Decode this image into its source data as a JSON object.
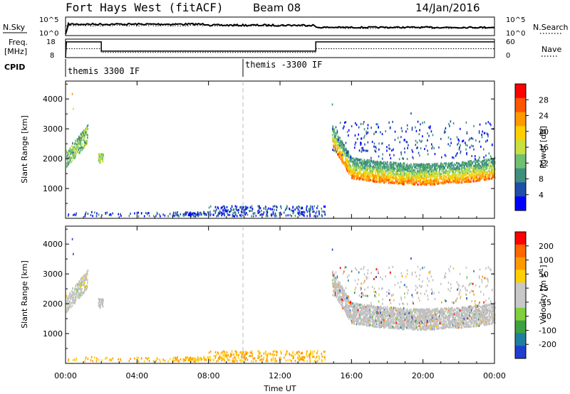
{
  "header": {
    "title": "Fort Hays West (fitACF)",
    "beam": "Beam 08",
    "date": "14/Jan/2016"
  },
  "nsky_panel": {
    "left_label": "N.Sky",
    "right_label": "N.Search",
    "left_ticks": [
      "10^5",
      "10^0"
    ],
    "right_ticks": [
      "10^5",
      "10^0"
    ]
  },
  "freq_panel": {
    "left_label_1": "Freq.",
    "left_label_2": "[MHz]",
    "right_label": "Nave",
    "left_ticks": [
      "18",
      "8"
    ],
    "right_ticks": [
      "60",
      "0"
    ]
  },
  "cpid_panel": {
    "label": "CPID",
    "programs": [
      "themis 3300 IF",
      "themis -3300 IF"
    ]
  },
  "colors": {
    "power_scale": [
      "#0000ff",
      "#1f4fa8",
      "#3f8f7f",
      "#6fc06f",
      "#c8e040",
      "#ffd000",
      "#ff9900",
      "#ff5500",
      "#ff0000"
    ],
    "velocity_scale": [
      "#1f3fcf",
      "#1f7fa0",
      "#3fa040",
      "#7fcf3f",
      "#c8c8c8",
      "#c8c8c8",
      "#ffd000",
      "#ff9900",
      "#ff6600",
      "#ff0000"
    ],
    "ground_scatter": "#c0c0c0"
  },
  "chart_data": [
    {
      "type": "heatmap",
      "name": "power",
      "ylabel": "Slant Range [km]",
      "yticks": [
        "1000",
        "2000",
        "3000",
        "4000"
      ],
      "ylim": [
        0,
        4600
      ],
      "colorbar_label": "Power [dB]",
      "colorbar_ticks": [
        "28",
        "24",
        "20",
        "16",
        "12",
        "8",
        "4"
      ],
      "colorbar_range": [
        0,
        32
      ],
      "scatter_regions": [
        {
          "t_start": 0.0,
          "t_end": 1.2,
          "range_low": 2000,
          "range_high": 3000,
          "level": "medium"
        },
        {
          "t_start": 1.8,
          "t_end": 2.1,
          "range_low": 1900,
          "range_high": 2200,
          "level": "medium"
        },
        {
          "t_start": 14.9,
          "t_end": 24.0,
          "range_low": 1000,
          "range_high": 2800,
          "level": "high"
        }
      ]
    },
    {
      "type": "heatmap",
      "name": "velocity",
      "ylabel": "Slant Range [km]",
      "yticks": [
        "1000",
        "2000",
        "3000",
        "4000"
      ],
      "ylim": [
        0,
        4600
      ],
      "colorbar_label": "Velocity [m s^-1]",
      "colorbar_ticks": [
        "200",
        "100",
        "50",
        "15",
        "-15",
        "-50",
        "-100",
        "-200"
      ],
      "colorbar_range": [
        -250,
        250
      ]
    }
  ],
  "x_axis": {
    "label": "Time UT",
    "ticks": [
      "00:00",
      "04:00",
      "08:00",
      "12:00",
      "16:00",
      "20:00",
      "00:00"
    ],
    "range": [
      0,
      24
    ]
  }
}
